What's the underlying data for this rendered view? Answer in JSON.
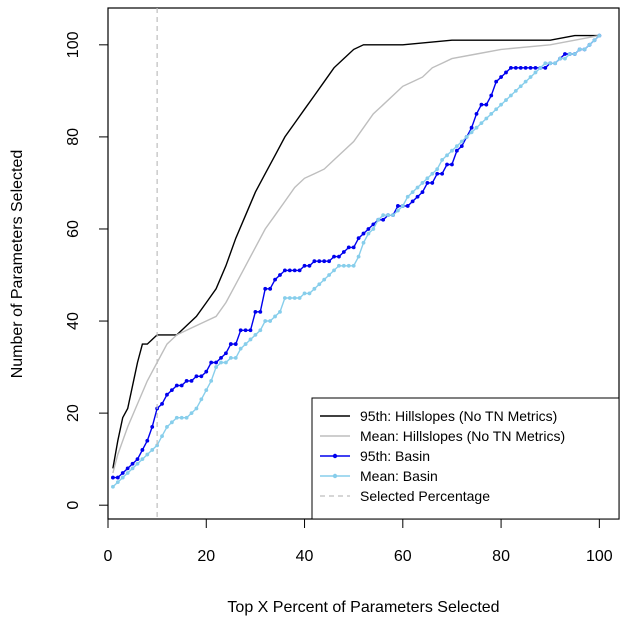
{
  "chart_data": {
    "type": "line",
    "title": "",
    "xlabel": "Top X Percent of Parameters Selected",
    "ylabel": "Number of Parameters Selected",
    "xlim": [
      0,
      104
    ],
    "ylim": [
      -3,
      108
    ],
    "xticks": [
      0,
      20,
      40,
      60,
      80,
      100
    ],
    "yticks": [
      0,
      20,
      40,
      60,
      80,
      100
    ],
    "xtick_labels": [
      "0",
      "20",
      "40",
      "60",
      "80",
      "100"
    ],
    "ytick_labels": [
      "0",
      "20",
      "40",
      "60",
      "80",
      "100"
    ],
    "grid": false,
    "legend_position": "bottom-right",
    "series": [
      {
        "name": "95th: Hillslopes (No TN Metrics)",
        "color": "#000000",
        "style": "line",
        "x": [
          1,
          2,
          3,
          4,
          5,
          6,
          7,
          8,
          9,
          10,
          12,
          14,
          16,
          18,
          20,
          22,
          24,
          26,
          28,
          30,
          32,
          34,
          36,
          38,
          40,
          42,
          44,
          46,
          48,
          50,
          52,
          54,
          60,
          70,
          80,
          90,
          95,
          100
        ],
        "y": [
          8,
          14,
          19,
          21,
          26,
          31,
          35,
          35,
          36,
          37,
          37,
          37,
          39,
          41,
          44,
          47,
          52,
          58,
          63,
          68,
          72,
          76,
          80,
          83,
          86,
          89,
          92,
          95,
          97,
          99,
          100,
          100,
          100,
          101,
          101,
          101,
          102,
          102
        ]
      },
      {
        "name": "Mean: Hillslopes (No TN Metrics)",
        "color": "#bebebe",
        "style": "line",
        "x": [
          1,
          2,
          4,
          6,
          8,
          10,
          12,
          14,
          16,
          18,
          20,
          22,
          24,
          26,
          28,
          30,
          32,
          34,
          36,
          38,
          40,
          42,
          44,
          46,
          48,
          50,
          52,
          54,
          56,
          58,
          60,
          62,
          64,
          66,
          68,
          70,
          75,
          80,
          90,
          95,
          100
        ],
        "y": [
          7,
          11,
          17,
          22,
          27,
          31,
          35,
          37,
          38,
          39,
          40,
          41,
          44,
          48,
          52,
          56,
          60,
          63,
          66,
          69,
          71,
          72,
          73,
          75,
          77,
          79,
          82,
          85,
          87,
          89,
          91,
          92,
          93,
          95,
          96,
          97,
          98,
          99,
          100,
          101,
          102
        ]
      },
      {
        "name": "95th: Basin",
        "color": "#0000ee",
        "style": "line-points",
        "x": [
          1,
          2,
          3,
          4,
          5,
          6,
          7,
          8,
          9,
          10,
          11,
          12,
          13,
          14,
          15,
          16,
          17,
          18,
          19,
          20,
          21,
          22,
          23,
          24,
          25,
          26,
          27,
          28,
          29,
          30,
          31,
          32,
          33,
          34,
          35,
          36,
          37,
          38,
          39,
          40,
          41,
          42,
          43,
          44,
          45,
          46,
          47,
          48,
          49,
          50,
          51,
          52,
          53,
          54,
          55,
          56,
          57,
          58,
          59,
          60,
          61,
          62,
          63,
          64,
          65,
          66,
          67,
          68,
          69,
          70,
          71,
          72,
          73,
          74,
          75,
          76,
          77,
          78,
          79,
          80,
          81,
          82,
          83,
          84,
          85,
          86,
          87,
          88,
          89,
          90,
          91,
          92,
          93,
          94,
          95,
          96,
          97,
          98,
          99,
          100
        ],
        "y": [
          6,
          6,
          7,
          8,
          9,
          10,
          12,
          14,
          17,
          21,
          22,
          24,
          25,
          26,
          26,
          27,
          27,
          28,
          28,
          29,
          31,
          31,
          32,
          33,
          35,
          35,
          38,
          38,
          38,
          42,
          42,
          47,
          47,
          49,
          50,
          51,
          51,
          51,
          51,
          52,
          52,
          53,
          53,
          53,
          53,
          54,
          54,
          55,
          56,
          56,
          58,
          59,
          60,
          61,
          62,
          62,
          63,
          63,
          65,
          65,
          65,
          66,
          67,
          68,
          70,
          70,
          72,
          72,
          74,
          74,
          77,
          78,
          80,
          82,
          85,
          87,
          87,
          89,
          92,
          93,
          94,
          95,
          95,
          95,
          95,
          95,
          95,
          95,
          95,
          96,
          96,
          97,
          98,
          98,
          98,
          99,
          99,
          100,
          101,
          102
        ]
      },
      {
        "name": "Mean: Basin",
        "color": "#87ceeb",
        "style": "line-points",
        "x": [
          1,
          2,
          3,
          4,
          5,
          6,
          7,
          8,
          9,
          10,
          11,
          12,
          13,
          14,
          15,
          16,
          17,
          18,
          19,
          20,
          21,
          22,
          23,
          24,
          25,
          26,
          27,
          28,
          29,
          30,
          31,
          32,
          33,
          34,
          35,
          36,
          37,
          38,
          39,
          40,
          41,
          42,
          43,
          44,
          45,
          46,
          47,
          48,
          49,
          50,
          51,
          52,
          53,
          54,
          55,
          56,
          57,
          58,
          59,
          60,
          61,
          62,
          63,
          64,
          65,
          66,
          67,
          68,
          69,
          70,
          71,
          72,
          73,
          74,
          75,
          76,
          77,
          78,
          79,
          80,
          81,
          82,
          83,
          84,
          85,
          86,
          87,
          88,
          89,
          90,
          91,
          92,
          93,
          94,
          95,
          96,
          97,
          98,
          99,
          100
        ],
        "y": [
          4,
          5,
          6,
          7,
          8,
          9,
          10,
          11,
          12,
          13,
          15,
          17,
          18,
          19,
          19,
          19,
          20,
          21,
          23,
          25,
          27,
          30,
          31,
          31,
          32,
          32,
          34,
          35,
          36,
          37,
          38,
          40,
          40,
          41,
          42,
          45,
          45,
          45,
          45,
          46,
          46,
          47,
          48,
          49,
          50,
          51,
          52,
          52,
          52,
          52,
          54,
          57,
          59,
          60,
          62,
          63,
          63,
          63,
          64,
          65,
          67,
          68,
          69,
          70,
          71,
          72,
          73,
          75,
          76,
          77,
          78,
          79,
          80,
          81,
          82,
          83,
          84,
          85,
          86,
          87,
          88,
          89,
          90,
          91,
          92,
          93,
          94,
          95,
          96,
          96,
          96,
          97,
          97,
          98,
          98,
          99,
          99,
          100,
          101,
          102
        ]
      },
      {
        "name": "Selected Percentage",
        "color": "#bebebe",
        "style": "dashed-vline",
        "x_value": 10
      }
    ]
  }
}
